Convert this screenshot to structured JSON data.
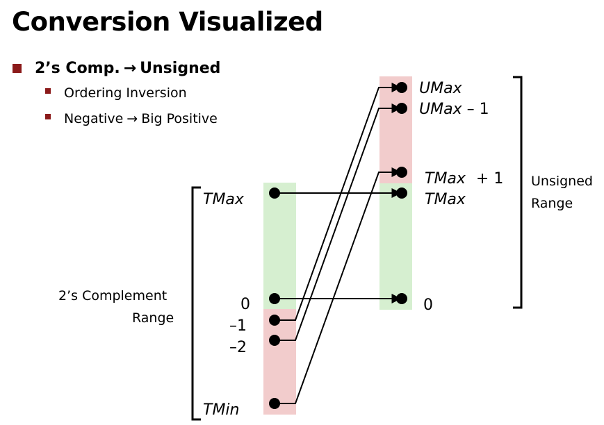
{
  "title": "Conversion Visualized",
  "bullet": {
    "main_left": "2’s Comp.",
    "main_arrow": "→",
    "main_right": "Unsigned",
    "sub1": "Ordering Inversion",
    "sub2_left": "Negative",
    "sub2_arrow": "→",
    "sub2_right": "Big Positive"
  },
  "left_labels": {
    "tmax": "TMax",
    "zero": "0",
    "neg1": "–1",
    "neg2": "–2",
    "tmin": "TMin"
  },
  "right_labels": {
    "umax": "UMax",
    "umax_minus_1_var": "UMax",
    "umax_minus_1_suffix": "– 1",
    "tmax_plus_1_var": "TMax",
    "tmax_plus_1_suffix": "+ 1",
    "tmax": "TMax",
    "zero": "0"
  },
  "ranges": {
    "twos_line1": "2’s Complement",
    "twos_line2": "Range",
    "unsigned_line1": "Unsigned",
    "unsigned_line2": "Range"
  },
  "colors": {
    "positive_band": "#d6efd0",
    "negative_band": "#f2cccc",
    "bullet_square": "#8b1a1a"
  }
}
